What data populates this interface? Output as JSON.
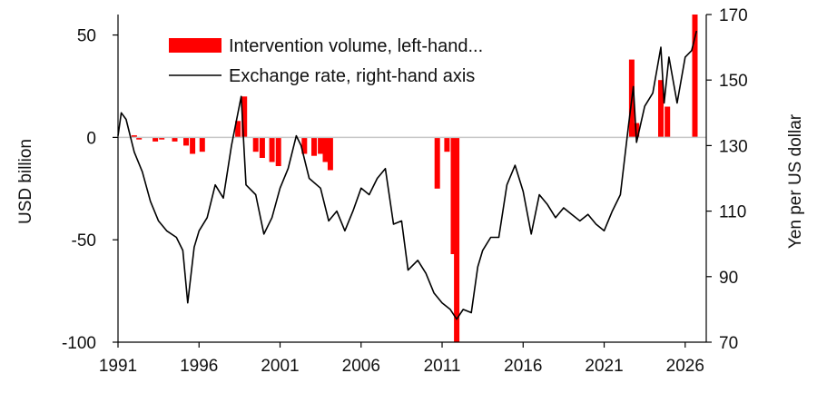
{
  "chart_data": {
    "type": "bar+line",
    "title": "",
    "legend": {
      "placement": "top-left",
      "entries": [
        {
          "label": "Intervention volume, left-hand...",
          "kind": "bar"
        },
        {
          "label": "Exchange rate, right-hand axis",
          "kind": "line"
        }
      ]
    },
    "xaxis": {
      "range": [
        1991,
        2027.3
      ],
      "ticks": [
        1991,
        1996,
        2001,
        2006,
        2011,
        2016,
        2021,
        2026
      ],
      "tick_labels": [
        "1991",
        "1996",
        "2001",
        "2006",
        "2011",
        "2016",
        "2021",
        "2026"
      ]
    },
    "yaxis_left": {
      "label": "USD billion",
      "range": [
        -100,
        60
      ],
      "ticks": [
        50,
        0,
        -50,
        -100
      ],
      "tick_labels": [
        "50",
        "0",
        "-50",
        "-100"
      ]
    },
    "yaxis_right": {
      "label": "Yen per US dollar",
      "range": [
        70,
        170
      ],
      "ticks": [
        170,
        150,
        130,
        110,
        90,
        70
      ],
      "tick_labels": [
        "170",
        "150",
        "130",
        "110",
        "90",
        "70"
      ]
    },
    "grid": false,
    "colors": {
      "bars": "#ff0000",
      "line": "#000000",
      "zero_line": "#c8c8c8",
      "axis": "#000000"
    },
    "series": [
      {
        "kind": "bar",
        "axis": "left",
        "points": [
          {
            "x": 1992.0,
            "y": 1
          },
          {
            "x": 1992.3,
            "y": -1
          },
          {
            "x": 1993.3,
            "y": -2
          },
          {
            "x": 1993.7,
            "y": -1
          },
          {
            "x": 1994.5,
            "y": -2
          },
          {
            "x": 1995.2,
            "y": -4
          },
          {
            "x": 1995.6,
            "y": -8
          },
          {
            "x": 1996.2,
            "y": -7
          },
          {
            "x": 1998.4,
            "y": 8
          },
          {
            "x": 1998.8,
            "y": 20
          },
          {
            "x": 1999.5,
            "y": -7
          },
          {
            "x": 1999.9,
            "y": -10
          },
          {
            "x": 2000.5,
            "y": -12
          },
          {
            "x": 2000.9,
            "y": -14
          },
          {
            "x": 2002.5,
            "y": -8
          },
          {
            "x": 2003.1,
            "y": -9
          },
          {
            "x": 2003.5,
            "y": -8
          },
          {
            "x": 2003.8,
            "y": -12
          },
          {
            "x": 2004.1,
            "y": -16
          },
          {
            "x": 2010.7,
            "y": -25
          },
          {
            "x": 2011.3,
            "y": -7
          },
          {
            "x": 2011.7,
            "y": -57
          },
          {
            "x": 2011.9,
            "y": -100
          },
          {
            "x": 2022.7,
            "y": 38
          },
          {
            "x": 2023.0,
            "y": 7
          },
          {
            "x": 2024.5,
            "y": 28
          },
          {
            "x": 2024.9,
            "y": 15
          },
          {
            "x": 2026.6,
            "y": 62
          }
        ]
      },
      {
        "kind": "line",
        "axis": "right",
        "points": [
          {
            "x": 1991.0,
            "y": 133
          },
          {
            "x": 1991.2,
            "y": 140
          },
          {
            "x": 1991.5,
            "y": 138
          },
          {
            "x": 1992.0,
            "y": 128
          },
          {
            "x": 1992.5,
            "y": 122
          },
          {
            "x": 1993.0,
            "y": 113
          },
          {
            "x": 1993.5,
            "y": 107
          },
          {
            "x": 1994.0,
            "y": 104
          },
          {
            "x": 1994.6,
            "y": 102
          },
          {
            "x": 1995.0,
            "y": 98
          },
          {
            "x": 1995.3,
            "y": 82
          },
          {
            "x": 1995.7,
            "y": 99
          },
          {
            "x": 1996.0,
            "y": 104
          },
          {
            "x": 1996.5,
            "y": 108
          },
          {
            "x": 1997.0,
            "y": 118
          },
          {
            "x": 1997.5,
            "y": 114
          },
          {
            "x": 1998.0,
            "y": 130
          },
          {
            "x": 1998.6,
            "y": 145
          },
          {
            "x": 1998.9,
            "y": 118
          },
          {
            "x": 1999.5,
            "y": 115
          },
          {
            "x": 2000.0,
            "y": 103
          },
          {
            "x": 2000.5,
            "y": 108
          },
          {
            "x": 2001.0,
            "y": 117
          },
          {
            "x": 2001.5,
            "y": 123
          },
          {
            "x": 2002.0,
            "y": 133
          },
          {
            "x": 2002.3,
            "y": 130
          },
          {
            "x": 2002.8,
            "y": 120
          },
          {
            "x": 2003.5,
            "y": 117
          },
          {
            "x": 2004.0,
            "y": 107
          },
          {
            "x": 2004.5,
            "y": 110
          },
          {
            "x": 2005.0,
            "y": 104
          },
          {
            "x": 2005.5,
            "y": 110
          },
          {
            "x": 2006.0,
            "y": 117
          },
          {
            "x": 2006.5,
            "y": 115
          },
          {
            "x": 2007.0,
            "y": 120
          },
          {
            "x": 2007.5,
            "y": 123
          },
          {
            "x": 2008.0,
            "y": 106
          },
          {
            "x": 2008.5,
            "y": 107
          },
          {
            "x": 2008.9,
            "y": 92
          },
          {
            "x": 2009.5,
            "y": 95
          },
          {
            "x": 2010.0,
            "y": 91
          },
          {
            "x": 2010.5,
            "y": 85
          },
          {
            "x": 2011.0,
            "y": 82
          },
          {
            "x": 2011.5,
            "y": 80
          },
          {
            "x": 2011.9,
            "y": 77
          },
          {
            "x": 2012.3,
            "y": 80
          },
          {
            "x": 2012.8,
            "y": 79
          },
          {
            "x": 2013.2,
            "y": 93
          },
          {
            "x": 2013.5,
            "y": 98
          },
          {
            "x": 2014.0,
            "y": 102
          },
          {
            "x": 2014.5,
            "y": 102
          },
          {
            "x": 2015.0,
            "y": 118
          },
          {
            "x": 2015.5,
            "y": 124
          },
          {
            "x": 2016.0,
            "y": 116
          },
          {
            "x": 2016.5,
            "y": 103
          },
          {
            "x": 2017.0,
            "y": 115
          },
          {
            "x": 2017.5,
            "y": 112
          },
          {
            "x": 2018.0,
            "y": 108
          },
          {
            "x": 2018.5,
            "y": 111
          },
          {
            "x": 2019.0,
            "y": 109
          },
          {
            "x": 2019.5,
            "y": 107
          },
          {
            "x": 2020.0,
            "y": 109
          },
          {
            "x": 2020.5,
            "y": 106
          },
          {
            "x": 2021.0,
            "y": 104
          },
          {
            "x": 2021.5,
            "y": 110
          },
          {
            "x": 2022.0,
            "y": 115
          },
          {
            "x": 2022.5,
            "y": 136
          },
          {
            "x": 2022.8,
            "y": 148
          },
          {
            "x": 2023.0,
            "y": 131
          },
          {
            "x": 2023.5,
            "y": 142
          },
          {
            "x": 2024.0,
            "y": 146
          },
          {
            "x": 2024.5,
            "y": 160
          },
          {
            "x": 2024.7,
            "y": 143
          },
          {
            "x": 2025.0,
            "y": 157
          },
          {
            "x": 2025.5,
            "y": 143
          },
          {
            "x": 2026.0,
            "y": 157
          },
          {
            "x": 2026.4,
            "y": 159
          },
          {
            "x": 2026.7,
            "y": 165
          }
        ]
      }
    ]
  }
}
